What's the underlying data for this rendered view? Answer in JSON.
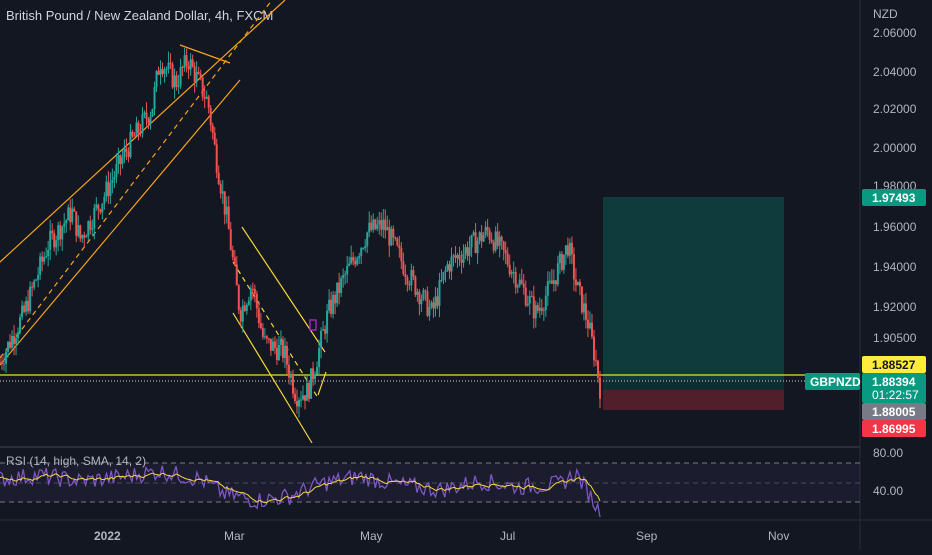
{
  "chart_data": {
    "type": "candlestick",
    "title": "British Pound / New Zealand Dollar, 4h, FXCM",
    "symbol": "GBPNZD",
    "currency_label": "NZD",
    "y_ticks": [
      "2.06000",
      "2.04000",
      "2.02000",
      "2.00000",
      "1.98000",
      "1.96000",
      "1.94000",
      "1.92000",
      "1.90500"
    ],
    "ylim": [
      1.855,
      2.065
    ],
    "x_ticks": [
      "2022",
      "Mar",
      "May",
      "Jul",
      "Sep",
      "Nov"
    ],
    "price_tags": {
      "take_profit": "1.97493",
      "entry": "1.88527",
      "current": "1.88394",
      "countdown": "01:22:57",
      "level": "1.88005",
      "stop_loss": "1.86995"
    },
    "close_path": [
      {
        "x": 0.0,
        "y": 1.895
      },
      {
        "x": 0.03,
        "y": 1.92
      },
      {
        "x": 0.06,
        "y": 1.955
      },
      {
        "x": 0.09,
        "y": 1.972
      },
      {
        "x": 0.1,
        "y": 1.958
      },
      {
        "x": 0.13,
        "y": 1.98
      },
      {
        "x": 0.16,
        "y": 2.005
      },
      {
        "x": 0.19,
        "y": 2.025
      },
      {
        "x": 0.2,
        "y": 2.05
      },
      {
        "x": 0.22,
        "y": 2.038
      },
      {
        "x": 0.235,
        "y": 2.05
      },
      {
        "x": 0.26,
        "y": 2.028
      },
      {
        "x": 0.27,
        "y": 2.0
      },
      {
        "x": 0.285,
        "y": 1.965
      },
      {
        "x": 0.3,
        "y": 1.92
      },
      {
        "x": 0.315,
        "y": 1.935
      },
      {
        "x": 0.33,
        "y": 1.905
      },
      {
        "x": 0.355,
        "y": 1.9
      },
      {
        "x": 0.37,
        "y": 1.878
      },
      {
        "x": 0.385,
        "y": 1.88
      },
      {
        "x": 0.395,
        "y": 1.895
      },
      {
        "x": 0.41,
        "y": 1.92
      },
      {
        "x": 0.43,
        "y": 1.938
      },
      {
        "x": 0.46,
        "y": 1.962
      },
      {
        "x": 0.48,
        "y": 1.965
      },
      {
        "x": 0.51,
        "y": 1.94
      },
      {
        "x": 0.54,
        "y": 1.92
      },
      {
        "x": 0.56,
        "y": 1.945
      },
      {
        "x": 0.59,
        "y": 1.955
      },
      {
        "x": 0.61,
        "y": 1.962
      },
      {
        "x": 0.63,
        "y": 1.95
      },
      {
        "x": 0.65,
        "y": 1.935
      },
      {
        "x": 0.67,
        "y": 1.92
      },
      {
        "x": 0.69,
        "y": 1.935
      },
      {
        "x": 0.71,
        "y": 1.955
      },
      {
        "x": 0.72,
        "y": 1.935
      },
      {
        "x": 0.735,
        "y": 1.915
      },
      {
        "x": 0.745,
        "y": 1.895
      },
      {
        "x": 0.75,
        "y": 1.882
      }
    ],
    "rsi": {
      "label": "RSI (14, high, SMA, 14, 2)",
      "ticks": [
        "80.00",
        "40.00"
      ],
      "ylim": [
        20,
        90
      ],
      "upper_band": 70,
      "lower_band": 30,
      "path": [
        {
          "x": 0.0,
          "y": 60
        },
        {
          "x": 0.05,
          "y": 64
        },
        {
          "x": 0.1,
          "y": 58
        },
        {
          "x": 0.15,
          "y": 62
        },
        {
          "x": 0.2,
          "y": 68
        },
        {
          "x": 0.25,
          "y": 60
        },
        {
          "x": 0.28,
          "y": 45
        },
        {
          "x": 0.32,
          "y": 38
        },
        {
          "x": 0.36,
          "y": 42
        },
        {
          "x": 0.4,
          "y": 55
        },
        {
          "x": 0.45,
          "y": 63
        },
        {
          "x": 0.5,
          "y": 54
        },
        {
          "x": 0.55,
          "y": 49
        },
        {
          "x": 0.6,
          "y": 58
        },
        {
          "x": 0.65,
          "y": 52
        },
        {
          "x": 0.7,
          "y": 55
        },
        {
          "x": 0.72,
          "y": 66
        },
        {
          "x": 0.74,
          "y": 40
        },
        {
          "x": 0.75,
          "y": 25
        }
      ]
    }
  }
}
